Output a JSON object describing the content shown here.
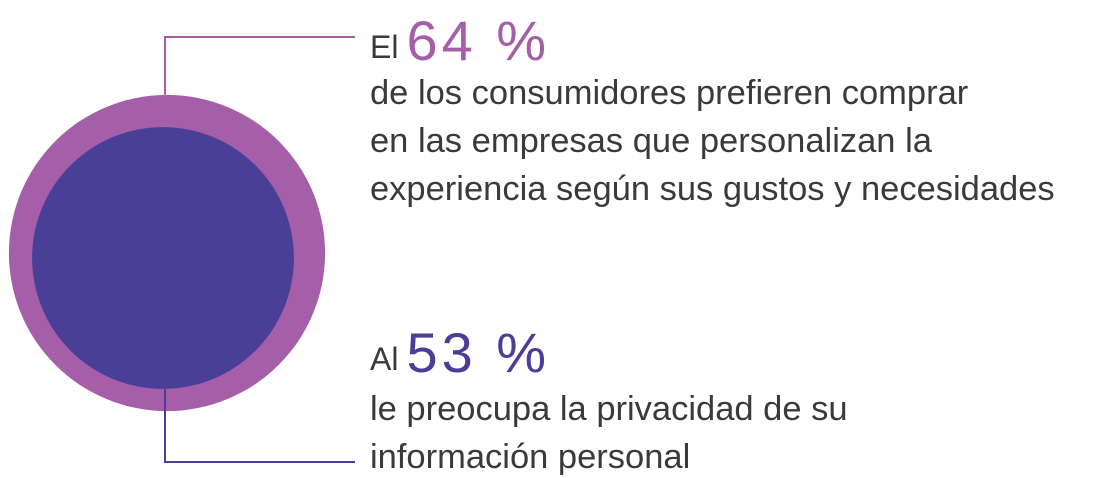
{
  "chart_data": {
    "type": "circles",
    "values": [
      64,
      53
    ],
    "value_labels": [
      "64 %",
      "53 %"
    ],
    "colors": [
      "#a55ea8",
      "#4a3f96"
    ],
    "prefixes": [
      "El",
      "Al"
    ],
    "descriptions": [
      [
        "de los consumidores prefieren comprar",
        "en las empresas que personalizan la",
        "experiencia según sus gustos y necesidades"
      ],
      [
        "le preocupa la privacidad de su",
        "información personal"
      ]
    ]
  }
}
